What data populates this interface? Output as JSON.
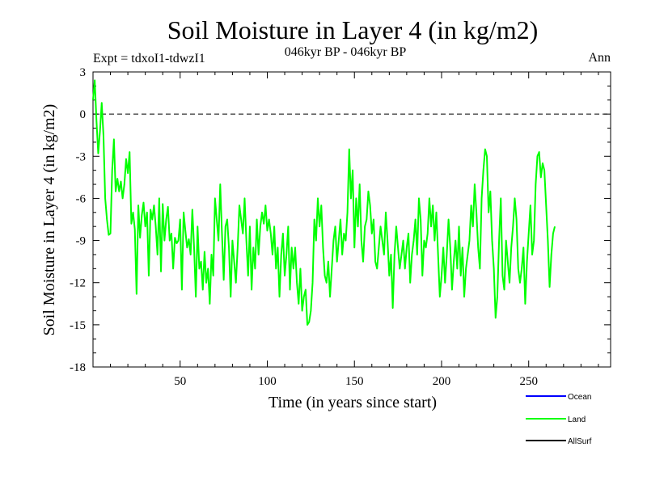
{
  "chart_data": {
    "type": "line",
    "title": "Soil Moisture in Layer 4 (in kg/m2)",
    "subtitle": "046kyr BP - 046kyr BP",
    "experiment": "Expt = tdxoI1-tdwzI1",
    "season": "Ann",
    "xlabel": "Time (in years since start)",
    "ylabel": "Soil Moisture in Layer 4 (in kg/m2)",
    "xlim": [
      0,
      297
    ],
    "ylim": [
      -18,
      3
    ],
    "xticks": [
      50,
      100,
      150,
      200,
      250
    ],
    "yticks": [
      3,
      0,
      -3,
      -6,
      -9,
      -12,
      -15,
      -18
    ],
    "reference_line": 0,
    "legend": [
      {
        "name": "Ocean",
        "color": "#0000ff"
      },
      {
        "name": "Land",
        "color": "#00ff00"
      },
      {
        "name": "AllSurf",
        "color": "#000000"
      }
    ],
    "series": [
      {
        "name": "Land",
        "color": "#00ff00",
        "x_start": 0,
        "x_step": 1,
        "values": [
          1.0,
          2.4,
          -0.5,
          -2.8,
          -1.2,
          0.8,
          -1.5,
          -6.0,
          -7.5,
          -8.6,
          -8.5,
          -4.0,
          -1.8,
          -5.5,
          -4.6,
          -5.5,
          -4.8,
          -6.0,
          -5.0,
          -3.2,
          -4.2,
          -2.7,
          -7.8,
          -7.0,
          -8.2,
          -12.8,
          -6.5,
          -8.8,
          -7.2,
          -6.3,
          -8.0,
          -7.0,
          -11.5,
          -6.8,
          -7.5,
          -6.5,
          -8.0,
          -10.0,
          -6.0,
          -11.2,
          -6.4,
          -9.0,
          -7.5,
          -6.6,
          -9.0,
          -8.5,
          -11.0,
          -8.8,
          -9.2,
          -9.0,
          -7.5,
          -12.5,
          -7.0,
          -8.3,
          -9.5,
          -8.9,
          -10.0,
          -6.8,
          -9.5,
          -13.0,
          -8.0,
          -11.0,
          -10.5,
          -12.5,
          -9.8,
          -12.0,
          -11.0,
          -13.5,
          -10.0,
          -11.5,
          -6.0,
          -7.5,
          -9.0,
          -5.0,
          -8.5,
          -11.8,
          -8.0,
          -7.5,
          -9.5,
          -13.0,
          -9.0,
          -10.5,
          -12.0,
          -9.5,
          -6.5,
          -7.5,
          -8.5,
          -6.0,
          -9.0,
          -11.5,
          -8.0,
          -12.5,
          -9.5,
          -11.0,
          -7.5,
          -10.0,
          -8.0,
          -7.0,
          -7.8,
          -6.5,
          -8.3,
          -7.5,
          -8.5,
          -10.0,
          -8.0,
          -11.0,
          -9.5,
          -13.0,
          -10.0,
          -8.5,
          -11.5,
          -10.0,
          -8.0,
          -12.5,
          -9.5,
          -11.0,
          -9.5,
          -12.0,
          -13.5,
          -11.0,
          -14.0,
          -13.0,
          -12.5,
          -15.0,
          -14.8,
          -14.0,
          -12.0,
          -7.5,
          -9.0,
          -6.0,
          -8.0,
          -6.5,
          -9.5,
          -11.5,
          -12.0,
          -10.5,
          -13.0,
          -11.0,
          -9.0,
          -8.0,
          -10.5,
          -9.0,
          -7.5,
          -10.0,
          -8.5,
          -9.0,
          -7.0,
          -2.5,
          -6.0,
          -4.0,
          -9.5,
          -6.0,
          -8.0,
          -5.0,
          -9.0,
          -10.5,
          -8.0,
          -7.5,
          -5.5,
          -6.5,
          -8.5,
          -7.5,
          -10.5,
          -11.0,
          -9.5,
          -8.0,
          -9.0,
          -10.0,
          -7.0,
          -9.0,
          -11.5,
          -10.0,
          -13.8,
          -10.0,
          -8.0,
          -9.5,
          -11.0,
          -10.0,
          -9.0,
          -11.0,
          -9.5,
          -8.5,
          -12.0,
          -10.0,
          -9.0,
          -7.5,
          -10.0,
          -6.0,
          -7.5,
          -11.5,
          -9.0,
          -9.5,
          -8.5,
          -6.0,
          -8.0,
          -6.5,
          -9.0,
          -7.0,
          -10.0,
          -13.0,
          -11.5,
          -9.5,
          -12.0,
          -10.0,
          -7.5,
          -9.5,
          -12.5,
          -10.5,
          -9.0,
          -11.0,
          -8.0,
          -11.5,
          -9.5,
          -13.0,
          -11.0,
          -10.0,
          -9.0,
          -6.5,
          -8.0,
          -5.0,
          -7.0,
          -9.5,
          -11.0,
          -6.0,
          -4.0,
          -2.5,
          -3.0,
          -7.0,
          -5.5,
          -9.0,
          -11.0,
          -14.5,
          -13.0,
          -9.0,
          -6.0,
          -11.5,
          -12.5,
          -9.0,
          -10.5,
          -12.0,
          -9.5,
          -8.0,
          -6.0,
          -7.5,
          -11.0,
          -12.0,
          -11.0,
          -9.5,
          -13.5,
          -10.5,
          -8.5,
          -6.5,
          -10.0,
          -9.0,
          -5.0,
          -3.0,
          -2.7,
          -4.5,
          -3.5,
          -4.0,
          -6.5,
          -9.0,
          -12.3,
          -10.0,
          -8.5,
          -8.0
        ]
      }
    ]
  }
}
